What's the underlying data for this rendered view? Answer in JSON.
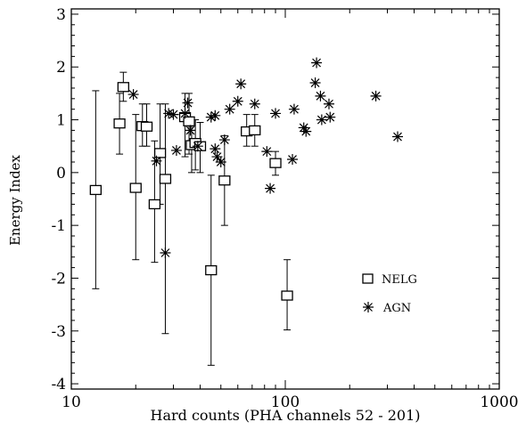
{
  "chart_data": {
    "type": "scatter",
    "xlabel": "Hard counts (PHA channels 52 - 201)",
    "ylabel": "Energy Index",
    "xscale": "log",
    "xlim": [
      10,
      1000
    ],
    "ylim": [
      -4.1,
      3.1
    ],
    "x_ticks": [
      10,
      100,
      1000
    ],
    "x_tick_labels": [
      "10",
      "100",
      "1000"
    ],
    "y_ticks": [
      -4,
      -3,
      -2,
      -1,
      0,
      1,
      2,
      3
    ],
    "y_tick_labels": [
      "-4",
      "-3",
      "-2",
      "-1",
      "0",
      "1",
      "2",
      "3"
    ],
    "legend_position": "lower-right",
    "series": [
      {
        "name": "NELG",
        "marker": "square",
        "points": [
          {
            "x": 13,
            "y": -0.33,
            "lo": -2.2,
            "hi": 1.55
          },
          {
            "x": 16.8,
            "y": 0.93,
            "lo": 0.35,
            "hi": 1.5
          },
          {
            "x": 17.5,
            "y": 1.62,
            "lo": 1.35,
            "hi": 1.9
          },
          {
            "x": 20,
            "y": -0.29,
            "lo": -1.65,
            "hi": 1.1
          },
          {
            "x": 21.5,
            "y": 0.88,
            "lo": 0.5,
            "hi": 1.3
          },
          {
            "x": 22.5,
            "y": 0.87,
            "lo": 0.5,
            "hi": 1.3
          },
          {
            "x": 24.5,
            "y": -0.6,
            "lo": -1.7,
            "hi": 0.6
          },
          {
            "x": 26,
            "y": 0.37,
            "lo": -0.6,
            "hi": 1.3
          },
          {
            "x": 27.5,
            "y": -0.12,
            "lo": -3.05,
            "hi": 1.3
          },
          {
            "x": 34,
            "y": 1.05,
            "lo": 0.3,
            "hi": 1.5
          },
          {
            "x": 35.5,
            "y": 0.97,
            "lo": 0.35,
            "hi": 1.5
          },
          {
            "x": 36.5,
            "y": 0.52,
            "lo": 0.0,
            "hi": 1.0
          },
          {
            "x": 38,
            "y": 0.56,
            "lo": 0.05,
            "hi": 1.0
          },
          {
            "x": 40,
            "y": 0.5,
            "lo": 0.0,
            "hi": 0.95
          },
          {
            "x": 45,
            "y": -1.85,
            "lo": -3.65,
            "hi": -0.05
          },
          {
            "x": 52,
            "y": -0.15,
            "lo": -1.0,
            "hi": 0.7
          },
          {
            "x": 66,
            "y": 0.78,
            "lo": 0.5,
            "hi": 1.1
          },
          {
            "x": 72,
            "y": 0.8,
            "lo": 0.5,
            "hi": 1.1
          },
          {
            "x": 90,
            "y": 0.18,
            "lo": -0.05,
            "hi": 0.4
          },
          {
            "x": 102,
            "y": -2.33,
            "lo": -2.98,
            "hi": -1.65
          }
        ]
      },
      {
        "name": "AGN",
        "marker": "asterisk",
        "points": [
          {
            "x": 19.5,
            "y": 1.48
          },
          {
            "x": 25,
            "y": 0.22
          },
          {
            "x": 27.5,
            "y": -1.52
          },
          {
            "x": 28.5,
            "y": 1.12
          },
          {
            "x": 30,
            "y": 1.1
          },
          {
            "x": 31,
            "y": 0.42
          },
          {
            "x": 34,
            "y": 1.12
          },
          {
            "x": 35,
            "y": 1.32
          },
          {
            "x": 36,
            "y": 0.8
          },
          {
            "x": 39,
            "y": 0.5
          },
          {
            "x": 45,
            "y": 1.05
          },
          {
            "x": 47,
            "y": 1.08
          },
          {
            "x": 47,
            "y": 0.45
          },
          {
            "x": 48,
            "y": 0.3
          },
          {
            "x": 50,
            "y": 0.2
          },
          {
            "x": 52,
            "y": 0.62
          },
          {
            "x": 55,
            "y": 1.2
          },
          {
            "x": 60,
            "y": 1.35
          },
          {
            "x": 62,
            "y": 1.68
          },
          {
            "x": 72,
            "y": 1.3
          },
          {
            "x": 82,
            "y": 0.4
          },
          {
            "x": 85,
            "y": -0.3
          },
          {
            "x": 90,
            "y": 1.12
          },
          {
            "x": 108,
            "y": 0.25
          },
          {
            "x": 110,
            "y": 1.2
          },
          {
            "x": 122,
            "y": 0.85
          },
          {
            "x": 125,
            "y": 0.78
          },
          {
            "x": 138,
            "y": 1.7
          },
          {
            "x": 140,
            "y": 2.08
          },
          {
            "x": 146,
            "y": 1.45
          },
          {
            "x": 148,
            "y": 1.0
          },
          {
            "x": 160,
            "y": 1.3
          },
          {
            "x": 162,
            "y": 1.05
          },
          {
            "x": 265,
            "y": 1.45
          },
          {
            "x": 335,
            "y": 0.68
          }
        ]
      }
    ]
  }
}
